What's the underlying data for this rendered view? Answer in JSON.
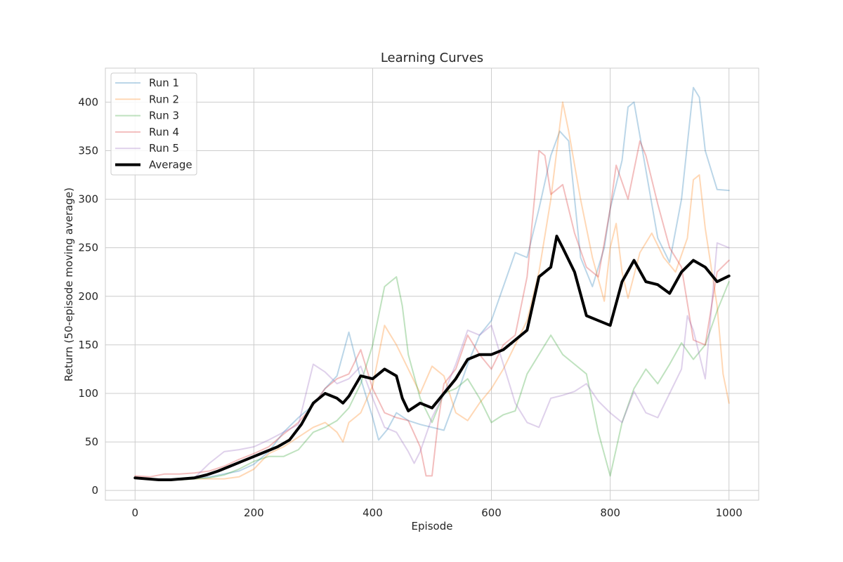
{
  "chart_data": {
    "type": "line",
    "title": "Learning Curves",
    "xlabel": "Episode",
    "ylabel": "Return (50-episode moving average)",
    "xlim": [
      -50,
      1050
    ],
    "ylim": [
      -10,
      435
    ],
    "xticks": [
      0,
      200,
      400,
      600,
      800,
      1000
    ],
    "yticks": [
      0,
      50,
      100,
      150,
      200,
      250,
      300,
      350,
      400
    ],
    "grid": true,
    "legend_position": "top-left",
    "series": [
      {
        "name": "Run 1",
        "color": "#1f77b4",
        "opacity": 0.3,
        "x": [
          0,
          25,
          50,
          75,
          100,
          125,
          150,
          175,
          200,
          225,
          250,
          275,
          300,
          320,
          340,
          360,
          380,
          400,
          410,
          425,
          440,
          460,
          480,
          500,
          520,
          540,
          560,
          580,
          600,
          620,
          640,
          660,
          680,
          700,
          715,
          730,
          750,
          770,
          790,
          800,
          810,
          820,
          830,
          840,
          860,
          880,
          900,
          920,
          940,
          950,
          960,
          980,
          1000
        ],
        "y": [
          13,
          12,
          11,
          11,
          12,
          14,
          17,
          20,
          27,
          40,
          60,
          75,
          88,
          105,
          118,
          163,
          115,
          75,
          52,
          63,
          80,
          72,
          68,
          65,
          62,
          95,
          130,
          160,
          175,
          210,
          245,
          240,
          290,
          345,
          370,
          360,
          240,
          210,
          250,
          290,
          315,
          340,
          395,
          400,
          330,
          260,
          235,
          300,
          415,
          405,
          350,
          310,
          309
        ]
      },
      {
        "name": "Run 2",
        "color": "#ff7f0e",
        "opacity": 0.3,
        "x": [
          0,
          25,
          50,
          75,
          100,
          125,
          150,
          175,
          200,
          225,
          250,
          275,
          300,
          320,
          340,
          350,
          360,
          380,
          400,
          420,
          440,
          460,
          480,
          500,
          520,
          540,
          560,
          580,
          600,
          620,
          640,
          660,
          680,
          700,
          720,
          730,
          750,
          770,
          790,
          800,
          810,
          820,
          830,
          850,
          870,
          890,
          910,
          930,
          940,
          950,
          960,
          980,
          990,
          1000
        ],
        "y": [
          13,
          12,
          11,
          11,
          12,
          12,
          12,
          14,
          22,
          38,
          45,
          55,
          65,
          70,
          60,
          50,
          70,
          80,
          108,
          170,
          150,
          125,
          100,
          128,
          118,
          80,
          72,
          90,
          105,
          125,
          150,
          175,
          225,
          300,
          400,
          370,
          300,
          240,
          195,
          250,
          275,
          225,
          198,
          245,
          265,
          240,
          225,
          260,
          320,
          325,
          270,
          190,
          120,
          90
        ]
      },
      {
        "name": "Run 3",
        "color": "#2ca02c",
        "opacity": 0.3,
        "x": [
          0,
          25,
          50,
          75,
          100,
          125,
          150,
          175,
          200,
          225,
          250,
          275,
          300,
          320,
          340,
          360,
          380,
          400,
          420,
          430,
          440,
          450,
          460,
          480,
          500,
          520,
          540,
          560,
          580,
          600,
          620,
          640,
          660,
          680,
          700,
          720,
          740,
          760,
          780,
          800,
          820,
          840,
          860,
          880,
          900,
          920,
          940,
          960,
          980,
          1000
        ],
        "y": [
          13,
          12,
          11,
          11,
          12,
          13,
          16,
          22,
          30,
          35,
          35,
          42,
          60,
          65,
          72,
          85,
          110,
          150,
          210,
          215,
          220,
          190,
          140,
          95,
          70,
          100,
          105,
          115,
          95,
          70,
          78,
          82,
          120,
          140,
          160,
          140,
          130,
          120,
          60,
          15,
          70,
          105,
          125,
          110,
          130,
          152,
          135,
          150,
          185,
          215
        ]
      },
      {
        "name": "Run 4",
        "color": "#d62728",
        "opacity": 0.3,
        "x": [
          0,
          25,
          50,
          75,
          100,
          125,
          150,
          175,
          200,
          225,
          250,
          275,
          300,
          320,
          340,
          360,
          380,
          400,
          420,
          440,
          460,
          480,
          490,
          500,
          510,
          520,
          540,
          560,
          580,
          600,
          620,
          640,
          660,
          680,
          690,
          700,
          720,
          740,
          760,
          780,
          800,
          810,
          830,
          850,
          860,
          880,
          900,
          920,
          940,
          960,
          980,
          1000
        ],
        "y": [
          15,
          14,
          17,
          17,
          18,
          20,
          25,
          32,
          38,
          45,
          58,
          70,
          88,
          105,
          115,
          120,
          145,
          105,
          80,
          75,
          72,
          45,
          15,
          15,
          70,
          110,
          125,
          160,
          140,
          125,
          150,
          160,
          220,
          350,
          345,
          305,
          315,
          265,
          230,
          220,
          290,
          335,
          300,
          360,
          345,
          295,
          250,
          230,
          155,
          150,
          225,
          237
        ]
      },
      {
        "name": "Run 5",
        "color": "#9467bd",
        "opacity": 0.3,
        "x": [
          0,
          25,
          50,
          75,
          100,
          125,
          150,
          175,
          200,
          225,
          250,
          275,
          300,
          320,
          340,
          360,
          380,
          400,
          420,
          440,
          460,
          470,
          480,
          500,
          520,
          540,
          560,
          580,
          600,
          620,
          640,
          660,
          680,
          700,
          720,
          740,
          760,
          780,
          800,
          820,
          840,
          860,
          880,
          900,
          920,
          930,
          940,
          960,
          980,
          1000
        ],
        "y": [
          13,
          12,
          12,
          12,
          13,
          28,
          40,
          42,
          45,
          52,
          60,
          68,
          130,
          122,
          110,
          115,
          128,
          95,
          65,
          60,
          40,
          28,
          40,
          75,
          100,
          130,
          165,
          160,
          170,
          130,
          90,
          70,
          65,
          95,
          98,
          102,
          110,
          92,
          80,
          70,
          102,
          80,
          75,
          100,
          125,
          180,
          165,
          115,
          255,
          250
        ]
      },
      {
        "name": "Average",
        "color": "#000000",
        "opacity": 1.0,
        "x": [
          0,
          20,
          40,
          60,
          80,
          100,
          120,
          140,
          160,
          180,
          200,
          220,
          240,
          260,
          280,
          300,
          320,
          340,
          350,
          360,
          380,
          400,
          420,
          440,
          450,
          460,
          480,
          500,
          520,
          540,
          560,
          580,
          600,
          620,
          640,
          660,
          680,
          700,
          710,
          720,
          740,
          760,
          780,
          800,
          820,
          840,
          860,
          880,
          900,
          920,
          940,
          960,
          980,
          1000
        ],
        "y": [
          13,
          12,
          11,
          11,
          12,
          13,
          16,
          20,
          25,
          30,
          35,
          40,
          45,
          52,
          68,
          90,
          100,
          95,
          90,
          97,
          118,
          115,
          125,
          118,
          95,
          82,
          90,
          85,
          100,
          115,
          135,
          140,
          140,
          145,
          155,
          165,
          220,
          230,
          262,
          250,
          225,
          180,
          175,
          170,
          215,
          237,
          215,
          212,
          203,
          225,
          237,
          230,
          215,
          221
        ]
      }
    ]
  }
}
